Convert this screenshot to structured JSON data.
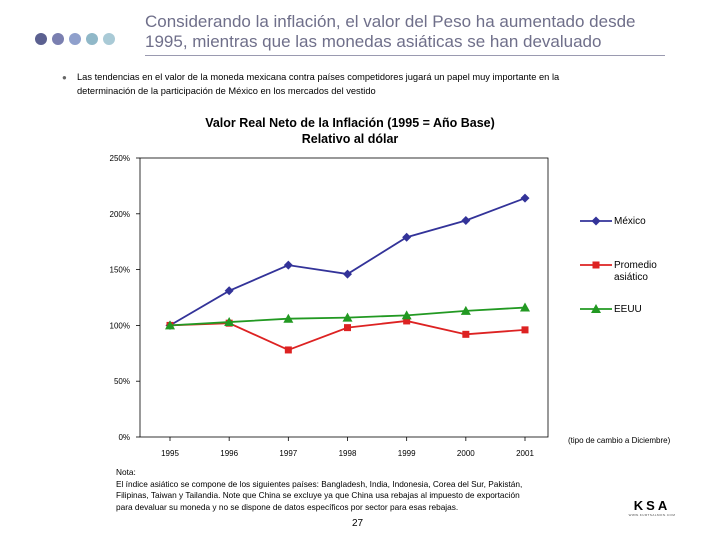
{
  "header": {
    "title_line1": "Considerando la inflación, el valor del Peso ha aumentado desde",
    "title_line2": "1995, mientras que las monedas asiáticas se han devaluado",
    "dot_colors": [
      "#5b6090",
      "#7a7fb0",
      "#8fa0cc",
      "#90b8c8",
      "#a9cad6"
    ]
  },
  "bullet": {
    "marker": "●",
    "text_line1": "Las tendencias en el valor de la moneda mexicana contra países competidores jugará un papel muy importante en la",
    "text_line2": "determinación de la participación de México en los mercados del vestido"
  },
  "chart_data": {
    "type": "line",
    "title_line1": "Valor Real Neto de la Inflación (1995 = Año Base)",
    "title_line2": "Relativo al dólar",
    "categories": [
      "1995",
      "1996",
      "1997",
      "1998",
      "1999",
      "2000",
      "2001"
    ],
    "y_ticks": [
      "0%",
      "50%",
      "100%",
      "150%",
      "200%",
      "250%"
    ],
    "ylim": [
      0,
      250
    ],
    "grid": false,
    "legend_position": "right",
    "x_note": "(tipo de cambio a Diciembre)",
    "series": [
      {
        "name": "México",
        "color": "#333399",
        "marker": "diamond",
        "values": [
          100,
          131,
          154,
          146,
          179,
          194,
          214
        ]
      },
      {
        "name_line1": "Promedio",
        "name_line2": "asiático",
        "color": "#dd2222",
        "marker": "square",
        "values": [
          100,
          102,
          78,
          98,
          104,
          92,
          96
        ]
      },
      {
        "name": "EEUU",
        "color": "#229922",
        "marker": "triangle",
        "values": [
          100,
          103,
          106,
          107,
          109,
          113,
          116
        ]
      }
    ]
  },
  "footer": {
    "note_line1": "Nota:",
    "note_line2": "El índice asiático se compone de los siguientes países:  Bangladesh, India, Indonesia, Corea del Sur, Pakistán,",
    "note_line3": "Filipinas, Taiwan y Tailandia.  Note que China se excluye ya que China usa rebajas al impuesto de exportación",
    "note_line4": "para devaluar su moneda y no se dispone de datos específicos por sector para esas rebajas.",
    "page_number": "27",
    "logo_text": "KSA",
    "logo_subtext": "WWW.KURTSALMON.COM"
  }
}
